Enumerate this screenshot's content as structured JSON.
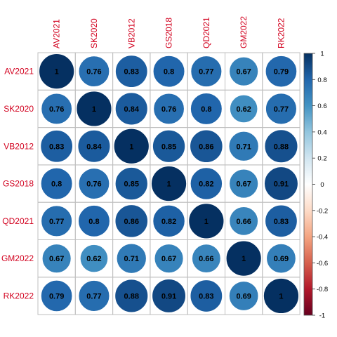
{
  "chart_data": {
    "type": "heatmap",
    "style": "circle correlation matrix",
    "variables": [
      "AV2021",
      "SK2020",
      "VB2012",
      "GS2018",
      "QD2021",
      "GM2022",
      "RK2022"
    ],
    "matrix": [
      [
        1,
        0.76,
        0.83,
        0.8,
        0.77,
        0.67,
        0.79
      ],
      [
        0.76,
        1,
        0.84,
        0.76,
        0.8,
        0.62,
        0.77
      ],
      [
        0.83,
        0.84,
        1,
        0.85,
        0.86,
        0.71,
        0.88
      ],
      [
        0.8,
        0.76,
        0.85,
        1,
        0.82,
        0.67,
        0.91
      ],
      [
        0.77,
        0.8,
        0.86,
        0.82,
        1,
        0.66,
        0.83
      ],
      [
        0.67,
        0.62,
        0.71,
        0.67,
        0.66,
        1,
        0.69
      ],
      [
        0.79,
        0.77,
        0.88,
        0.91,
        0.83,
        0.69,
        1
      ]
    ],
    "value_labels": [
      [
        "1",
        "0.76",
        "0.83",
        "0.8",
        "0.77",
        "0.67",
        "0.79"
      ],
      [
        "0.76",
        "1",
        "0.84",
        "0.76",
        "0.8",
        "0.62",
        "0.77"
      ],
      [
        "0.83",
        "0.84",
        "1",
        "0.85",
        "0.86",
        "0.71",
        "0.88"
      ],
      [
        "0.8",
        "0.76",
        "0.85",
        "1",
        "0.82",
        "0.67",
        "0.91"
      ],
      [
        "0.77",
        "0.8",
        "0.86",
        "0.82",
        "1",
        "0.66",
        "0.83"
      ],
      [
        "0.67",
        "0.62",
        "0.71",
        "0.67",
        "0.66",
        "1",
        "0.69"
      ],
      [
        "0.79",
        "0.77",
        "0.88",
        "0.91",
        "0.83",
        "0.69",
        "1"
      ]
    ],
    "color_scale": {
      "range": [
        -1,
        1
      ],
      "tick_labels": [
        "1",
        "0.8",
        "0.6",
        "0.4",
        "0.2",
        "0",
        "-0.2",
        "-0.4",
        "-0.6",
        "-0.8",
        "-1"
      ],
      "tick_values": [
        1,
        0.8,
        0.6,
        0.4,
        0.2,
        0,
        -0.2,
        -0.4,
        -0.6,
        -0.8,
        -1
      ],
      "stops": [
        "#67001F",
        "#B2182B",
        "#D6604D",
        "#F4A582",
        "#FDDBC7",
        "#FFFFFF",
        "#D1E5F0",
        "#92C5DE",
        "#4393C3",
        "#2166AC",
        "#053061"
      ]
    },
    "label_color": "#D2001E",
    "grid": true,
    "legend": "right"
  }
}
